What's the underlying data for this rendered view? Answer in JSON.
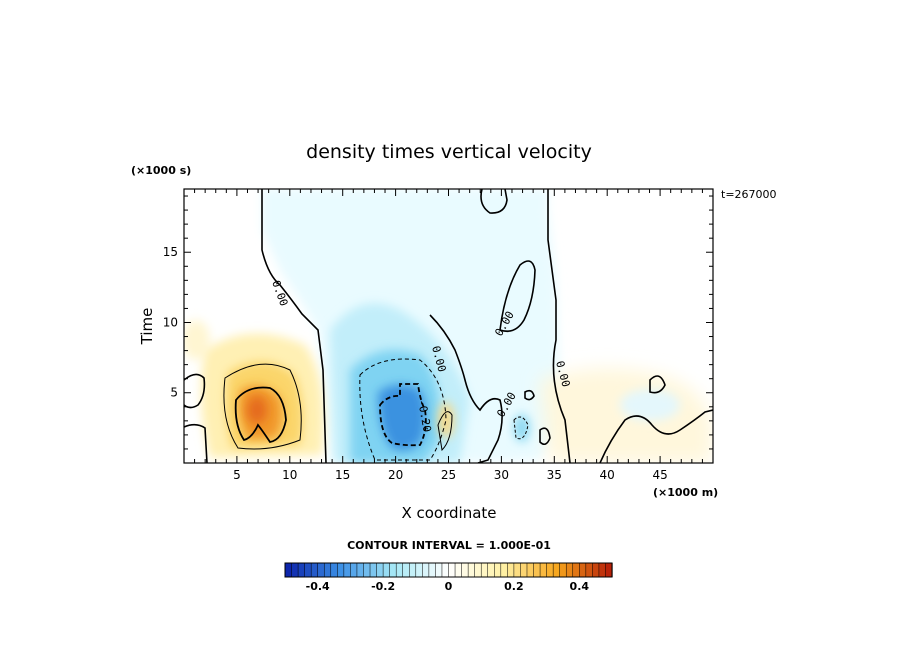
{
  "chart_data": {
    "type": "heatmap",
    "title": "density times vertical velocity",
    "xlabel": "X coordinate",
    "ylabel": "Time",
    "x_units": "(×1000 m)",
    "y_units": "(×1000 s)",
    "time_stamp": "t=267000",
    "xlim": [
      0,
      50
    ],
    "ylim": [
      0,
      19.5
    ],
    "x_ticks": [
      5,
      10,
      15,
      20,
      25,
      30,
      35,
      40,
      45
    ],
    "x_tick_labels": [
      "5",
      "10",
      "15",
      "20",
      "25",
      "30",
      "35",
      "40",
      "45"
    ],
    "y_ticks": [
      5,
      10,
      15
    ],
    "y_tick_labels": [
      "5",
      "10",
      "15"
    ],
    "contour_interval_text": "CONTOUR INTERVAL = 1.000E-01",
    "contour_interval": 0.1,
    "contour_labels": [
      "0.00",
      "0.00",
      "0.00",
      "0.00",
      "-0.20",
      "0.00"
    ],
    "colorbar": {
      "range": [
        -0.5,
        0.5
      ],
      "tick_values": [
        -0.4,
        -0.2,
        0,
        0.2,
        0.4
      ],
      "tick_labels": [
        "-0.4",
        "-0.2",
        "0",
        "0.2",
        "0.4"
      ],
      "colors": [
        "#0b1fa8",
        "#3b8fe6",
        "#a6e8f5",
        "#ffffff",
        "#fff2a6",
        "#f7a51c",
        "#b41a08"
      ]
    },
    "features": [
      {
        "kind": "positive",
        "center": [
          7.5,
          3.5
        ],
        "peak": 0.33,
        "extent_x": [
          3,
          12
        ],
        "extent_y": [
          0,
          9
        ]
      },
      {
        "kind": "negative",
        "center": [
          21,
          3.5
        ],
        "peak": -0.25,
        "extent_x": [
          15,
          27
        ],
        "extent_y": [
          0,
          12
        ]
      },
      {
        "kind": "weak-negative",
        "center": [
          20,
          12
        ],
        "peak": -0.05,
        "extent_x": [
          7,
          34
        ],
        "extent_y": [
          5,
          19.5
        ]
      },
      {
        "kind": "negative",
        "center": [
          31.5,
          2.5
        ],
        "peak": -0.1,
        "extent_x": [
          30,
          33
        ],
        "extent_y": [
          1,
          4
        ]
      },
      {
        "kind": "positive",
        "center": [
          24,
          3.5
        ],
        "peak": 0.1,
        "extent_x": [
          23,
          25
        ],
        "extent_y": [
          2,
          5
        ]
      }
    ]
  }
}
